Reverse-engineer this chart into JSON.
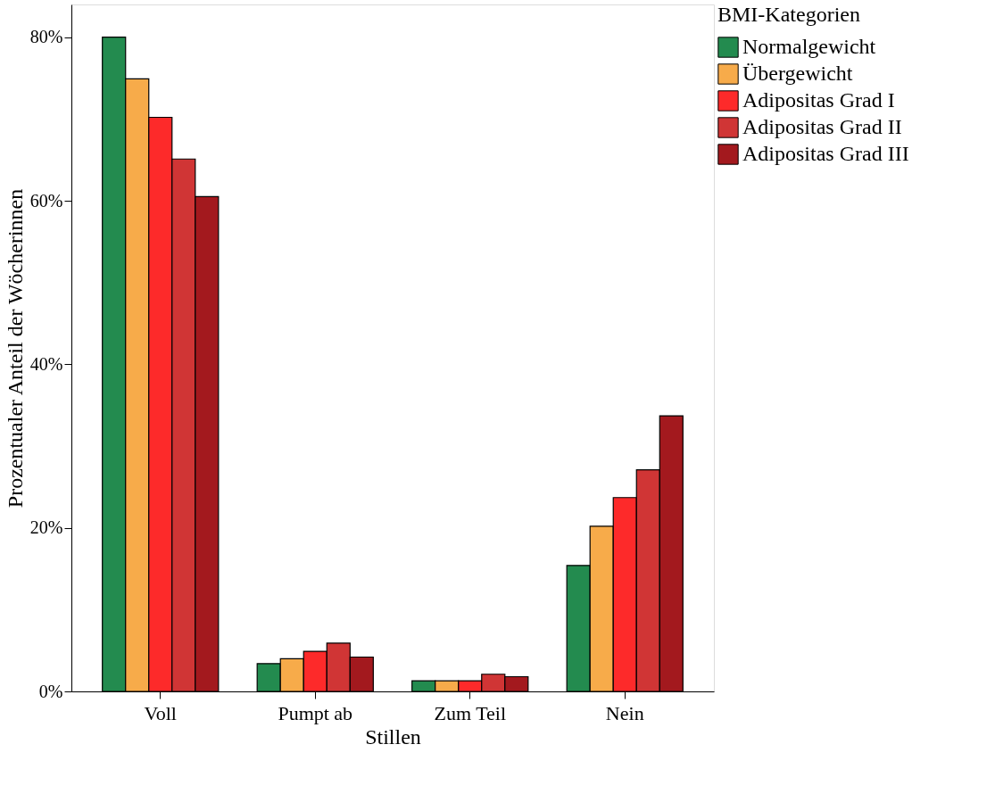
{
  "chart_data": {
    "type": "bar",
    "xlabel": "Stillen",
    "ylabel": "Prozentualer Anteil der Wöcherinnen",
    "legend_title": "BMI-Kategorien",
    "categories": [
      "Voll",
      "Pumpt ab",
      "Zum Teil",
      "Nein"
    ],
    "series": [
      {
        "name": "Normalgewicht",
        "color": "#238b4f",
        "values": [
          80.0,
          3.4,
          1.3,
          15.4
        ]
      },
      {
        "name": "Übergewicht",
        "color": "#f7ab4a",
        "values": [
          74.9,
          4.0,
          1.3,
          20.2
        ]
      },
      {
        "name": "Adipositas Grad I",
        "color": "#fd2a2a",
        "values": [
          70.2,
          4.9,
          1.3,
          23.7
        ]
      },
      {
        "name": "Adipositas Grad II",
        "color": "#d03535",
        "values": [
          65.1,
          5.9,
          2.1,
          27.1
        ]
      },
      {
        "name": "Adipositas Grad III",
        "color": "#a3191e",
        "values": [
          60.5,
          4.2,
          1.8,
          33.7
        ]
      }
    ],
    "ylim": [
      0,
      84
    ],
    "yticks": [
      {
        "value": 0,
        "label": "0%"
      },
      {
        "value": 20,
        "label": "20%"
      },
      {
        "value": 40,
        "label": "40%"
      },
      {
        "value": 60,
        "label": "60%"
      },
      {
        "value": 80,
        "label": "80%"
      }
    ],
    "grid": false,
    "legend": "top right"
  }
}
